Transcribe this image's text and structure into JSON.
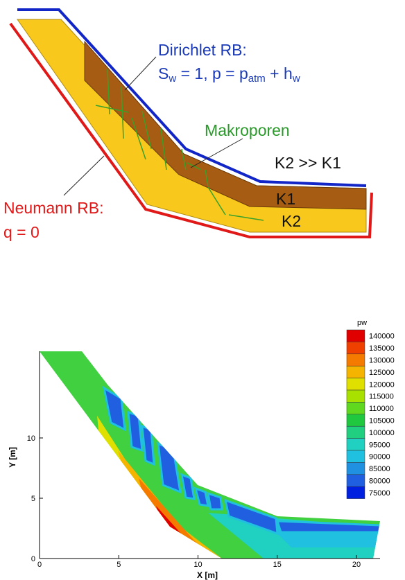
{
  "diagram": {
    "dirichlet_title": "Dirichlet RB:",
    "dirichlet_formula": [
      "S",
      "w",
      " = 1, p = p",
      "atm",
      " + h",
      "w"
    ],
    "macropores": "Makroporen",
    "relation": "K2 >> K1",
    "layer_top": "K1",
    "layer_bottom": "K2",
    "neumann_title": "Neumann RB:",
    "neumann_formula": "q = 0"
  },
  "chart_data": {
    "type": "contour",
    "title": "pw",
    "xlabel": "X [m]",
    "ylabel": "Y [m]",
    "xlim": [
      0,
      21.5
    ],
    "ylim": [
      0,
      17.2
    ],
    "xticks": [
      0,
      5,
      10,
      15,
      20
    ],
    "yticks": [
      0,
      5,
      10
    ],
    "levels": [
      140000,
      135000,
      130000,
      125000,
      120000,
      115000,
      110000,
      105000,
      100000,
      95000,
      90000,
      85000,
      80000,
      75000
    ],
    "colors": [
      "#e00000",
      "#f04000",
      "#f57a00",
      "#f5b400",
      "#e0e000",
      "#a8e000",
      "#60d820",
      "#20c840",
      "#20d080",
      "#20d0c0",
      "#20c0e0",
      "#2090e0",
      "#2060e0",
      "#0020e0"
    ]
  }
}
